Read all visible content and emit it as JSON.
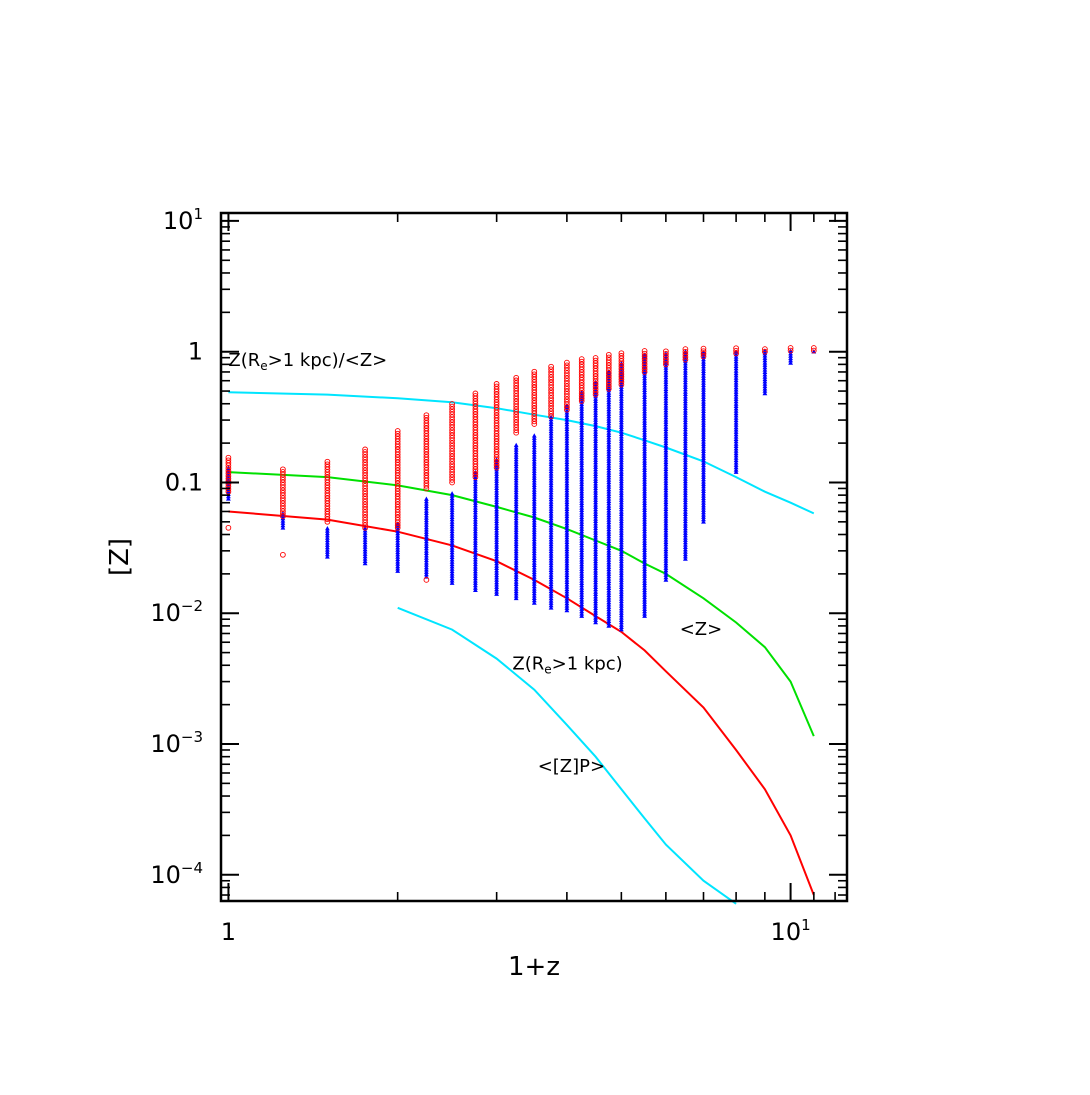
{
  "chart_data": {
    "type": "scatter",
    "title": "",
    "xlabel": "1+z",
    "ylabel": "[Z]",
    "xscale": "log",
    "yscale": "log",
    "xlim": [
      0.97,
      12.6
    ],
    "ylim": [
      6.3e-05,
      11.5
    ],
    "grid": false,
    "x_ticks": [
      {
        "value": 1,
        "label": "1",
        "sup": ""
      },
      {
        "value": 10,
        "label": "10",
        "sup": "1"
      }
    ],
    "y_ticks": [
      {
        "value": 10,
        "label": "10",
        "sup": "1"
      },
      {
        "value": 1,
        "label": "1",
        "sup": ""
      },
      {
        "value": 0.1,
        "label": "0.1",
        "sup": ""
      },
      {
        "value": 0.01,
        "label": "10",
        "sup": "−2"
      },
      {
        "value": 0.001,
        "label": "10",
        "sup": "−3"
      },
      {
        "value": 0.0001,
        "label": "10",
        "sup": "−4"
      }
    ],
    "columns_x": [
      1.0,
      1.25,
      1.5,
      1.75,
      2.0,
      2.25,
      2.5,
      2.75,
      3.0,
      3.25,
      3.5,
      3.75,
      4.0,
      4.25,
      4.5,
      4.75,
      5.0,
      5.5,
      6.0,
      6.5,
      7.0,
      8.0,
      9.0,
      10.0,
      11.0
    ],
    "circles_color": "#ff0000",
    "triangles_color": "#0000ff",
    "circle_ranges": [
      [
        0.085,
        0.155
      ],
      [
        0.055,
        0.13
      ],
      [
        0.05,
        0.145
      ],
      [
        0.045,
        0.185
      ],
      [
        0.045,
        0.25
      ],
      [
        0.09,
        0.33
      ],
      [
        0.1,
        0.41
      ],
      [
        0.11,
        0.5
      ],
      [
        0.13,
        0.58
      ],
      [
        0.24,
        0.66
      ],
      [
        0.28,
        0.73
      ],
      [
        0.32,
        0.78
      ],
      [
        0.36,
        0.84
      ],
      [
        0.42,
        0.88
      ],
      [
        0.47,
        0.92
      ],
      [
        0.52,
        0.95
      ],
      [
        0.56,
        0.98
      ],
      [
        0.7,
        1.02
      ],
      [
        0.8,
        1.04
      ],
      [
        0.87,
        1.05
      ],
      [
        0.92,
        1.06
      ],
      [
        0.97,
        1.08
      ],
      [
        1.0,
        1.08
      ],
      [
        1.02,
        1.08
      ],
      [
        1.02,
        1.07
      ]
    ],
    "triangle_ranges": [
      [
        0.075,
        0.13
      ],
      [
        0.045,
        0.06
      ],
      [
        0.027,
        0.045
      ],
      [
        0.024,
        0.045
      ],
      [
        0.021,
        0.05
      ],
      [
        0.019,
        0.075
      ],
      [
        0.017,
        0.085
      ],
      [
        0.015,
        0.12
      ],
      [
        0.014,
        0.15
      ],
      [
        0.013,
        0.2
      ],
      [
        0.012,
        0.23
      ],
      [
        0.011,
        0.32
      ],
      [
        0.0105,
        0.4
      ],
      [
        0.0095,
        0.5
      ],
      [
        0.0085,
        0.6
      ],
      [
        0.008,
        0.72
      ],
      [
        0.0075,
        0.82
      ],
      [
        0.0095,
        0.95
      ],
      [
        0.018,
        0.98
      ],
      [
        0.026,
        1.0
      ],
      [
        0.05,
        1.0
      ],
      [
        0.12,
        1.03
      ],
      [
        0.48,
        1.03
      ],
      [
        0.82,
        1.03
      ],
      [
        1.0,
        1.03
      ]
    ],
    "outliers": [
      {
        "x": 1.0,
        "y": 0.045
      },
      {
        "x": 1.25,
        "y": 0.028
      },
      {
        "x": 2.25,
        "y": 0.018
      }
    ],
    "series": [
      {
        "name": "Z(Re>1 kpc)/<Z>",
        "color": "#00e5ff",
        "x": [
          1.0,
          1.5,
          2.0,
          2.5,
          3.0,
          3.5,
          4.0,
          4.5,
          5.0,
          5.5,
          6.0,
          7.0,
          8.0,
          9.0,
          10.0,
          11.0
        ],
        "y": [
          0.49,
          0.47,
          0.44,
          0.41,
          0.37,
          0.33,
          0.3,
          0.27,
          0.24,
          0.21,
          0.185,
          0.145,
          0.11,
          0.085,
          0.07,
          0.058
        ]
      },
      {
        "name": "<Z>",
        "color": "#00e000",
        "x": [
          1.0,
          1.5,
          2.0,
          2.5,
          3.0,
          3.5,
          4.0,
          4.5,
          5.0,
          5.5,
          6.0,
          7.0,
          8.0,
          9.0,
          10.0,
          11.0
        ],
        "y": [
          0.12,
          0.11,
          0.095,
          0.08,
          0.065,
          0.054,
          0.044,
          0.036,
          0.03,
          0.024,
          0.02,
          0.013,
          0.0085,
          0.0055,
          0.003,
          0.00115
        ]
      },
      {
        "name": "Z(Re>1 kpc)",
        "color": "#ff0000",
        "x": [
          1.0,
          1.5,
          2.0,
          2.5,
          3.0,
          3.5,
          4.0,
          4.5,
          5.0,
          5.5,
          6.0,
          7.0,
          8.0,
          9.0,
          10.0,
          11.0
        ],
        "y": [
          0.06,
          0.052,
          0.042,
          0.033,
          0.025,
          0.018,
          0.013,
          0.0095,
          0.0072,
          0.0052,
          0.0036,
          0.0019,
          0.0009,
          0.00045,
          0.0002,
          7e-05
        ]
      },
      {
        "name": "<[Z]P>",
        "color": "#00e5ff",
        "x": [
          2.0,
          2.5,
          3.0,
          3.5,
          4.0,
          4.5,
          5.0,
          5.5,
          6.0,
          7.0,
          8.0
        ],
        "y": [
          0.011,
          0.0075,
          0.0045,
          0.0026,
          0.0014,
          0.0008,
          0.00045,
          0.00027,
          0.00017,
          9e-05,
          6e-05
        ]
      }
    ],
    "annotations": [
      {
        "id": "ratio",
        "text": "Z(R",
        "sub": "e",
        "rest": ">1 kpc)/<Z>",
        "x": 1.0,
        "y": 0.78
      },
      {
        "id": "meanz",
        "text": "<Z>",
        "sub": "",
        "rest": "",
        "x": 6.35,
        "y": 0.0068
      },
      {
        "id": "zre",
        "text": "Z(R",
        "sub": "e",
        "rest": ">1 kpc)",
        "x": 3.2,
        "y": 0.0037
      },
      {
        "id": "zp",
        "text": "<[Z]P>",
        "sub": "",
        "rest": "",
        "x": 3.55,
        "y": 0.00061
      }
    ]
  }
}
